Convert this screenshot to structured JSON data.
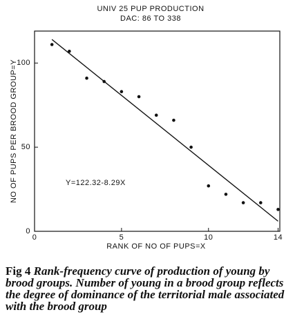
{
  "chart_data": {
    "type": "scatter",
    "title": "UNIV 25 PUP PRODUCTION",
    "subtitle": "DAC: 86 TO 338",
    "x_label": "RANK OF NO OF PUPS=X",
    "y_label": "NO OF PUPS PER BROOD GROUP=Y",
    "annotation": "Y=122.32-8.29X",
    "x": [
      1,
      2,
      3,
      4,
      5,
      6,
      7,
      8,
      9,
      10,
      11,
      12,
      13,
      14
    ],
    "values": [
      111,
      107,
      91,
      89,
      83,
      80,
      69,
      66,
      50,
      27,
      22,
      17,
      17,
      13
    ],
    "color": "#111111",
    "fit_line": {
      "x": [
        1,
        14
      ],
      "values": [
        114,
        6
      ]
    },
    "xlim": [
      0,
      14.1
    ],
    "ylim": [
      0,
      119
    ],
    "xticks": [
      0,
      5,
      10,
      14
    ],
    "yticks": [
      0,
      50,
      100
    ]
  },
  "caption": {
    "label": "Fig 4",
    "text": "Rank-frequency curve of production of young by brood groups. Number of young in a brood group reflects the degree of dominance of the territorial male associated with the brood group"
  }
}
